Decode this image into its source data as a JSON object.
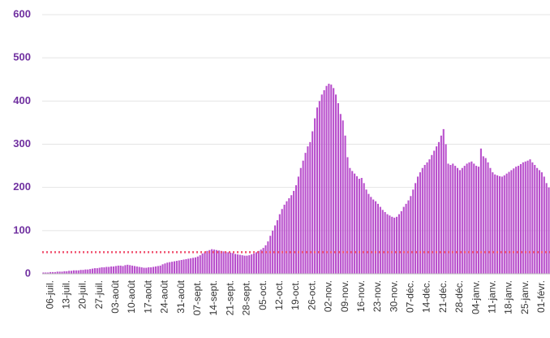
{
  "chart_data": {
    "type": "bar",
    "categories": [
      null,
      null,
      null,
      "06-juil.",
      null,
      null,
      null,
      null,
      null,
      null,
      "13-juil.",
      null,
      null,
      null,
      null,
      null,
      null,
      "20-juil.",
      null,
      null,
      null,
      null,
      null,
      null,
      "27-juil.",
      null,
      null,
      null,
      null,
      null,
      null,
      "03-août",
      null,
      null,
      null,
      null,
      null,
      null,
      "10-août",
      null,
      null,
      null,
      null,
      null,
      null,
      "17-août",
      null,
      null,
      null,
      null,
      null,
      null,
      "24-août",
      null,
      null,
      null,
      null,
      null,
      null,
      "31-août",
      null,
      null,
      null,
      null,
      null,
      null,
      "07-sept.",
      null,
      null,
      null,
      null,
      null,
      null,
      "14-sept.",
      null,
      null,
      null,
      null,
      null,
      null,
      "21-sept.",
      null,
      null,
      null,
      null,
      null,
      null,
      "28-sept.",
      null,
      null,
      null,
      null,
      null,
      null,
      "05-oct.",
      null,
      null,
      null,
      null,
      null,
      null,
      "12-oct.",
      null,
      null,
      null,
      null,
      null,
      null,
      "19-oct.",
      null,
      null,
      null,
      null,
      null,
      null,
      "26-oct.",
      null,
      null,
      null,
      null,
      null,
      null,
      "02-nov.",
      null,
      null,
      null,
      null,
      null,
      null,
      "09-nov.",
      null,
      null,
      null,
      null,
      null,
      null,
      "16-nov.",
      null,
      null,
      null,
      null,
      null,
      null,
      "23-nov.",
      null,
      null,
      null,
      null,
      null,
      null,
      "30-nov.",
      null,
      null,
      null,
      null,
      null,
      null,
      "07-déc.",
      null,
      null,
      null,
      null,
      null,
      null,
      "14-déc.",
      null,
      null,
      null,
      null,
      null,
      null,
      "21-déc.",
      null,
      null,
      null,
      null,
      null,
      null,
      "28-déc.",
      null,
      null,
      null,
      null,
      null,
      null,
      "04-janv.",
      null,
      null,
      null,
      null,
      null,
      null,
      "11-janv.",
      null,
      null,
      null,
      null,
      null,
      null,
      "18-janv.",
      null,
      null,
      null,
      null,
      null,
      null,
      "25-janv.",
      null,
      null,
      null,
      null,
      null,
      null,
      "01-févr.",
      null,
      null,
      null
    ],
    "values": [
      3,
      3,
      3,
      4,
      4,
      4,
      5,
      5,
      5,
      6,
      6,
      7,
      7,
      8,
      8,
      8,
      9,
      9,
      10,
      10,
      11,
      12,
      13,
      13,
      14,
      15,
      15,
      16,
      16,
      17,
      17,
      18,
      19,
      19,
      18,
      20,
      21,
      20,
      19,
      18,
      17,
      16,
      15,
      14,
      14,
      15,
      15,
      16,
      17,
      18,
      19,
      22,
      24,
      26,
      27,
      28,
      29,
      30,
      31,
      32,
      33,
      34,
      35,
      36,
      37,
      38,
      40,
      43,
      47,
      50,
      53,
      55,
      57,
      56,
      55,
      54,
      53,
      52,
      51,
      50,
      49,
      48,
      46,
      45,
      44,
      43,
      42,
      42,
      43,
      45,
      47,
      50,
      53,
      56,
      60,
      66,
      75,
      88,
      100,
      112,
      124,
      138,
      150,
      160,
      168,
      175,
      182,
      192,
      205,
      225,
      245,
      262,
      280,
      295,
      305,
      330,
      360,
      385,
      400,
      415,
      425,
      435,
      440,
      438,
      430,
      415,
      395,
      370,
      355,
      320,
      270,
      245,
      238,
      232,
      226,
      220,
      222,
      210,
      195,
      185,
      178,
      172,
      168,
      162,
      155,
      148,
      143,
      138,
      135,
      132,
      130,
      132,
      138,
      145,
      155,
      162,
      170,
      180,
      195,
      210,
      225,
      235,
      245,
      252,
      258,
      265,
      275,
      285,
      295,
      305,
      320,
      335,
      300,
      255,
      252,
      255,
      250,
      245,
      240,
      245,
      250,
      255,
      258,
      260,
      255,
      250,
      248,
      290,
      272,
      268,
      258,
      245,
      235,
      230,
      228,
      226,
      225,
      228,
      232,
      236,
      240,
      244,
      248,
      250,
      254,
      258,
      260,
      262,
      265,
      258,
      252,
      245,
      240,
      235,
      225,
      210,
      200
    ],
    "color": "#b84fcc",
    "threshold": 50,
    "threshold_color": "#f0506e",
    "ylim": [
      0,
      600
    ],
    "yticks": [
      0,
      100,
      200,
      300,
      400,
      500,
      600
    ],
    "grid": true
  }
}
